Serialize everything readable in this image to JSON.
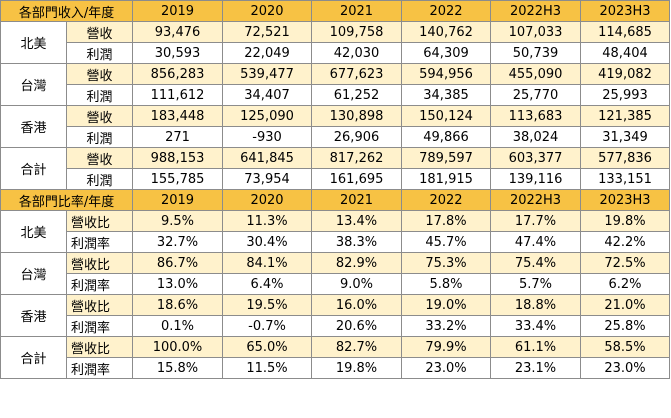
{
  "section1": {
    "header": "各部門收入/年度",
    "years": [
      "2019",
      "2020",
      "2021",
      "2022",
      "2022H3",
      "2023H3"
    ],
    "groups": [
      {
        "region": "北美",
        "rows": [
          {
            "label": "營收",
            "values": [
              "93,476",
              "72,521",
              "109,758",
              "140,762",
              "107,033",
              "114,685"
            ]
          },
          {
            "label": "利潤",
            "values": [
              "30,593",
              "22,049",
              "42,030",
              "64,309",
              "50,739",
              "48,404"
            ]
          }
        ]
      },
      {
        "region": "台灣",
        "rows": [
          {
            "label": "營收",
            "values": [
              "856,283",
              "539,477",
              "677,623",
              "594,956",
              "455,090",
              "419,082"
            ]
          },
          {
            "label": "利潤",
            "values": [
              "111,612",
              "34,407",
              "61,252",
              "34,385",
              "25,770",
              "25,993"
            ]
          }
        ]
      },
      {
        "region": "香港",
        "rows": [
          {
            "label": "營收",
            "values": [
              "183,448",
              "125,090",
              "130,898",
              "150,124",
              "113,683",
              "121,385"
            ]
          },
          {
            "label": "利潤",
            "values": [
              "271",
              "-930",
              "26,906",
              "49,866",
              "38,024",
              "31,349"
            ]
          }
        ]
      },
      {
        "region": "合計",
        "rows": [
          {
            "label": "營收",
            "values": [
              "988,153",
              "641,845",
              "817,262",
              "789,597",
              "603,377",
              "577,836"
            ]
          },
          {
            "label": "利潤",
            "values": [
              "155,785",
              "73,954",
              "161,695",
              "181,915",
              "139,116",
              "133,151"
            ]
          }
        ]
      }
    ]
  },
  "section2": {
    "header": "各部門比率/年度",
    "years": [
      "2019",
      "2020",
      "2021",
      "2022",
      "2022H3",
      "2023H3"
    ],
    "groups": [
      {
        "region": "北美",
        "rows": [
          {
            "label": "營收比",
            "values": [
              "9.5%",
              "11.3%",
              "13.4%",
              "17.8%",
              "17.7%",
              "19.8%"
            ]
          },
          {
            "label": "利潤率",
            "values": [
              "32.7%",
              "30.4%",
              "38.3%",
              "45.7%",
              "47.4%",
              "42.2%"
            ]
          }
        ]
      },
      {
        "region": "台灣",
        "rows": [
          {
            "label": "營收比",
            "values": [
              "86.7%",
              "84.1%",
              "82.9%",
              "75.3%",
              "75.4%",
              "72.5%"
            ]
          },
          {
            "label": "利潤率",
            "values": [
              "13.0%",
              "6.4%",
              "9.0%",
              "5.8%",
              "5.7%",
              "6.2%"
            ]
          }
        ]
      },
      {
        "region": "香港",
        "rows": [
          {
            "label": "營收比",
            "values": [
              "18.6%",
              "19.5%",
              "16.0%",
              "19.0%",
              "18.8%",
              "21.0%"
            ]
          },
          {
            "label": "利潤率",
            "values": [
              "0.1%",
              "-0.7%",
              "20.6%",
              "33.2%",
              "33.4%",
              "25.8%"
            ]
          }
        ]
      },
      {
        "region": "合計",
        "rows": [
          {
            "label": "營收比",
            "values": [
              "100.0%",
              "65.0%",
              "82.7%",
              "79.9%",
              "61.1%",
              "58.5%"
            ]
          },
          {
            "label": "利潤率",
            "values": [
              "15.8%",
              "11.5%",
              "19.8%",
              "23.0%",
              "23.1%",
              "23.0%"
            ]
          }
        ]
      }
    ]
  },
  "colors": {
    "header_bg": "#f7c244",
    "light_row_bg": "#fff2cc",
    "border": "#8c8c8c"
  }
}
